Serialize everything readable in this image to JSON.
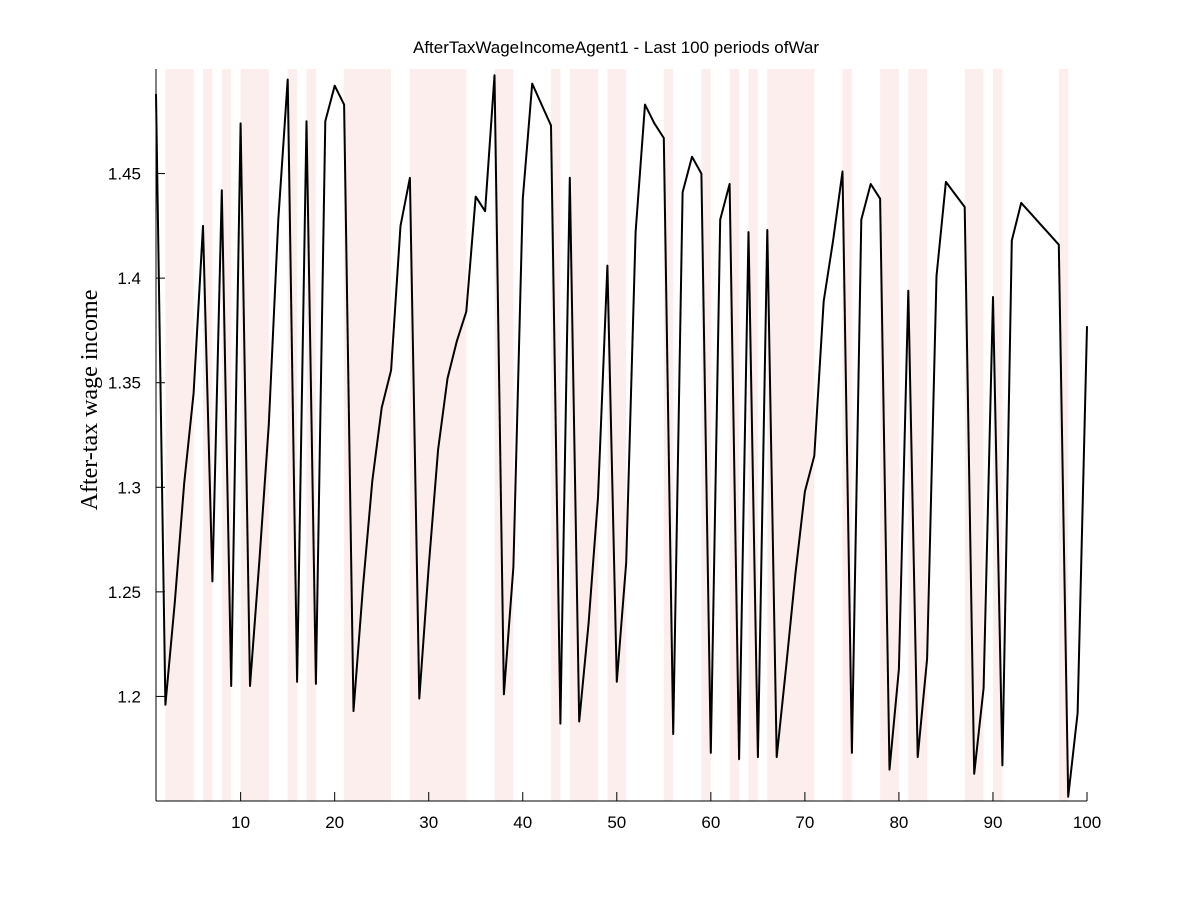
{
  "chart_data": {
    "type": "line",
    "title": "AfterTaxWageIncomeAgent1 - Last 100 periods ofWar",
    "xlabel": "",
    "ylabel": "After-tax wage income",
    "xlim": [
      1,
      100
    ],
    "ylim": [
      1.15,
      1.5
    ],
    "xticks": [
      10,
      20,
      30,
      40,
      50,
      60,
      70,
      80,
      90,
      100
    ],
    "xtick_labels": [
      "10",
      "20",
      "30",
      "40",
      "50",
      "60",
      "70",
      "80",
      "90",
      "100"
    ],
    "yticks": [
      1.2,
      1.25,
      1.3,
      1.35,
      1.4,
      1.45
    ],
    "ytick_labels": [
      "1.2",
      "1.25",
      "1.3",
      "1.35",
      "1.4",
      "1.45"
    ],
    "grid": false,
    "line_color": "#000000",
    "shade_color": "#fdeeee",
    "shaded_periods": [
      [
        2,
        5
      ],
      [
        6,
        7
      ],
      [
        8,
        9
      ],
      [
        10,
        13
      ],
      [
        15,
        16
      ],
      [
        17,
        18
      ],
      [
        21,
        26
      ],
      [
        28,
        34
      ],
      [
        37,
        39
      ],
      [
        43,
        44
      ],
      [
        45,
        48
      ],
      [
        49,
        51
      ],
      [
        55,
        56
      ],
      [
        59,
        60
      ],
      [
        62,
        63
      ],
      [
        64,
        65
      ],
      [
        66,
        71
      ],
      [
        74,
        75
      ],
      [
        78,
        80
      ],
      [
        81,
        83
      ],
      [
        87,
        89
      ],
      [
        90,
        91
      ],
      [
        97,
        98
      ]
    ],
    "series": [
      {
        "x": [
          1,
          2,
          3,
          4,
          5,
          6,
          7,
          8,
          9,
          10,
          11,
          12,
          13,
          14,
          15,
          16,
          17,
          18,
          19,
          20,
          21,
          22,
          23,
          24,
          25,
          26,
          27,
          28,
          29,
          30,
          31,
          32,
          33,
          34,
          35,
          36,
          37,
          38,
          39,
          40,
          41,
          42,
          43,
          44,
          45,
          46,
          47,
          48,
          49,
          50,
          51,
          52,
          53,
          54,
          55,
          56,
          57,
          58,
          59,
          60,
          61,
          62,
          63,
          64,
          65,
          66,
          67,
          68,
          69,
          70,
          71,
          72,
          73,
          74,
          75,
          76,
          77,
          78,
          79,
          80,
          81,
          82,
          83,
          84,
          85,
          86,
          87,
          88,
          89,
          90,
          91,
          92,
          93,
          94,
          95,
          96,
          97,
          98,
          99,
          100
        ],
        "values": [
          1.488,
          1.196,
          1.245,
          1.302,
          1.345,
          1.425,
          1.255,
          1.442,
          1.205,
          1.474,
          1.205,
          1.265,
          1.33,
          1.428,
          1.495,
          1.207,
          1.475,
          1.206,
          1.475,
          1.492,
          1.483,
          1.193,
          1.252,
          1.303,
          1.338,
          1.356,
          1.425,
          1.448,
          1.199,
          1.262,
          1.318,
          1.352,
          1.37,
          1.384,
          1.439,
          1.432,
          1.497,
          1.201,
          1.262,
          1.438,
          1.493,
          1.483,
          1.473,
          1.187,
          1.448,
          1.188,
          1.235,
          1.295,
          1.406,
          1.207,
          1.264,
          1.422,
          1.483,
          1.474,
          1.467,
          1.182,
          1.441,
          1.458,
          1.45,
          1.173,
          1.428,
          1.445,
          1.17,
          1.422,
          1.171,
          1.423,
          1.171,
          1.214,
          1.259,
          1.298,
          1.315,
          1.389,
          1.418,
          1.451,
          1.173,
          1.428,
          1.445,
          1.438,
          1.165,
          1.213,
          1.394,
          1.171,
          1.218,
          1.401,
          1.446,
          1.44,
          1.434,
          1.163,
          1.204,
          1.391,
          1.167,
          1.418,
          1.436,
          1.431,
          1.426,
          1.421,
          1.416,
          1.152,
          1.192,
          1.377
        ]
      }
    ]
  }
}
